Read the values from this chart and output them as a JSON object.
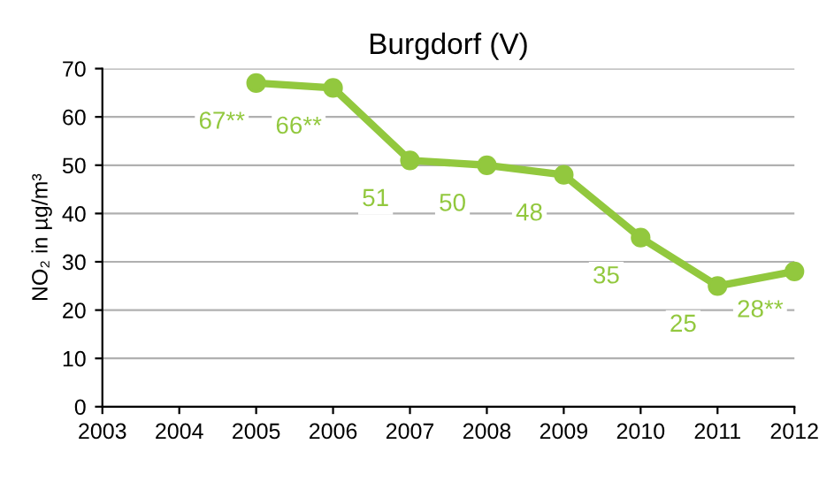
{
  "chart_data": {
    "type": "line",
    "title": "Burgdorf (V)",
    "ylabel": "NO₂ in µg/m³",
    "x": [
      2005,
      2006,
      2007,
      2008,
      2009,
      2010,
      2011,
      2012
    ],
    "series": [
      {
        "color": "#92c83e",
        "values": [
          67,
          66,
          51,
          50,
          48,
          35,
          25,
          28
        ],
        "value_labels": [
          "67**",
          "66**",
          "51",
          "50",
          "48",
          "35",
          "25",
          "28**"
        ]
      }
    ],
    "xlim": [
      2003,
      2012
    ],
    "xticks": [
      2003,
      2004,
      2005,
      2006,
      2007,
      2008,
      2009,
      2010,
      2011,
      2012
    ],
    "ylim": [
      0,
      70
    ],
    "yticks": [
      0,
      10,
      20,
      30,
      40,
      50,
      60,
      70
    ],
    "grid": "y",
    "marker": "circle",
    "line_style": "solid"
  }
}
